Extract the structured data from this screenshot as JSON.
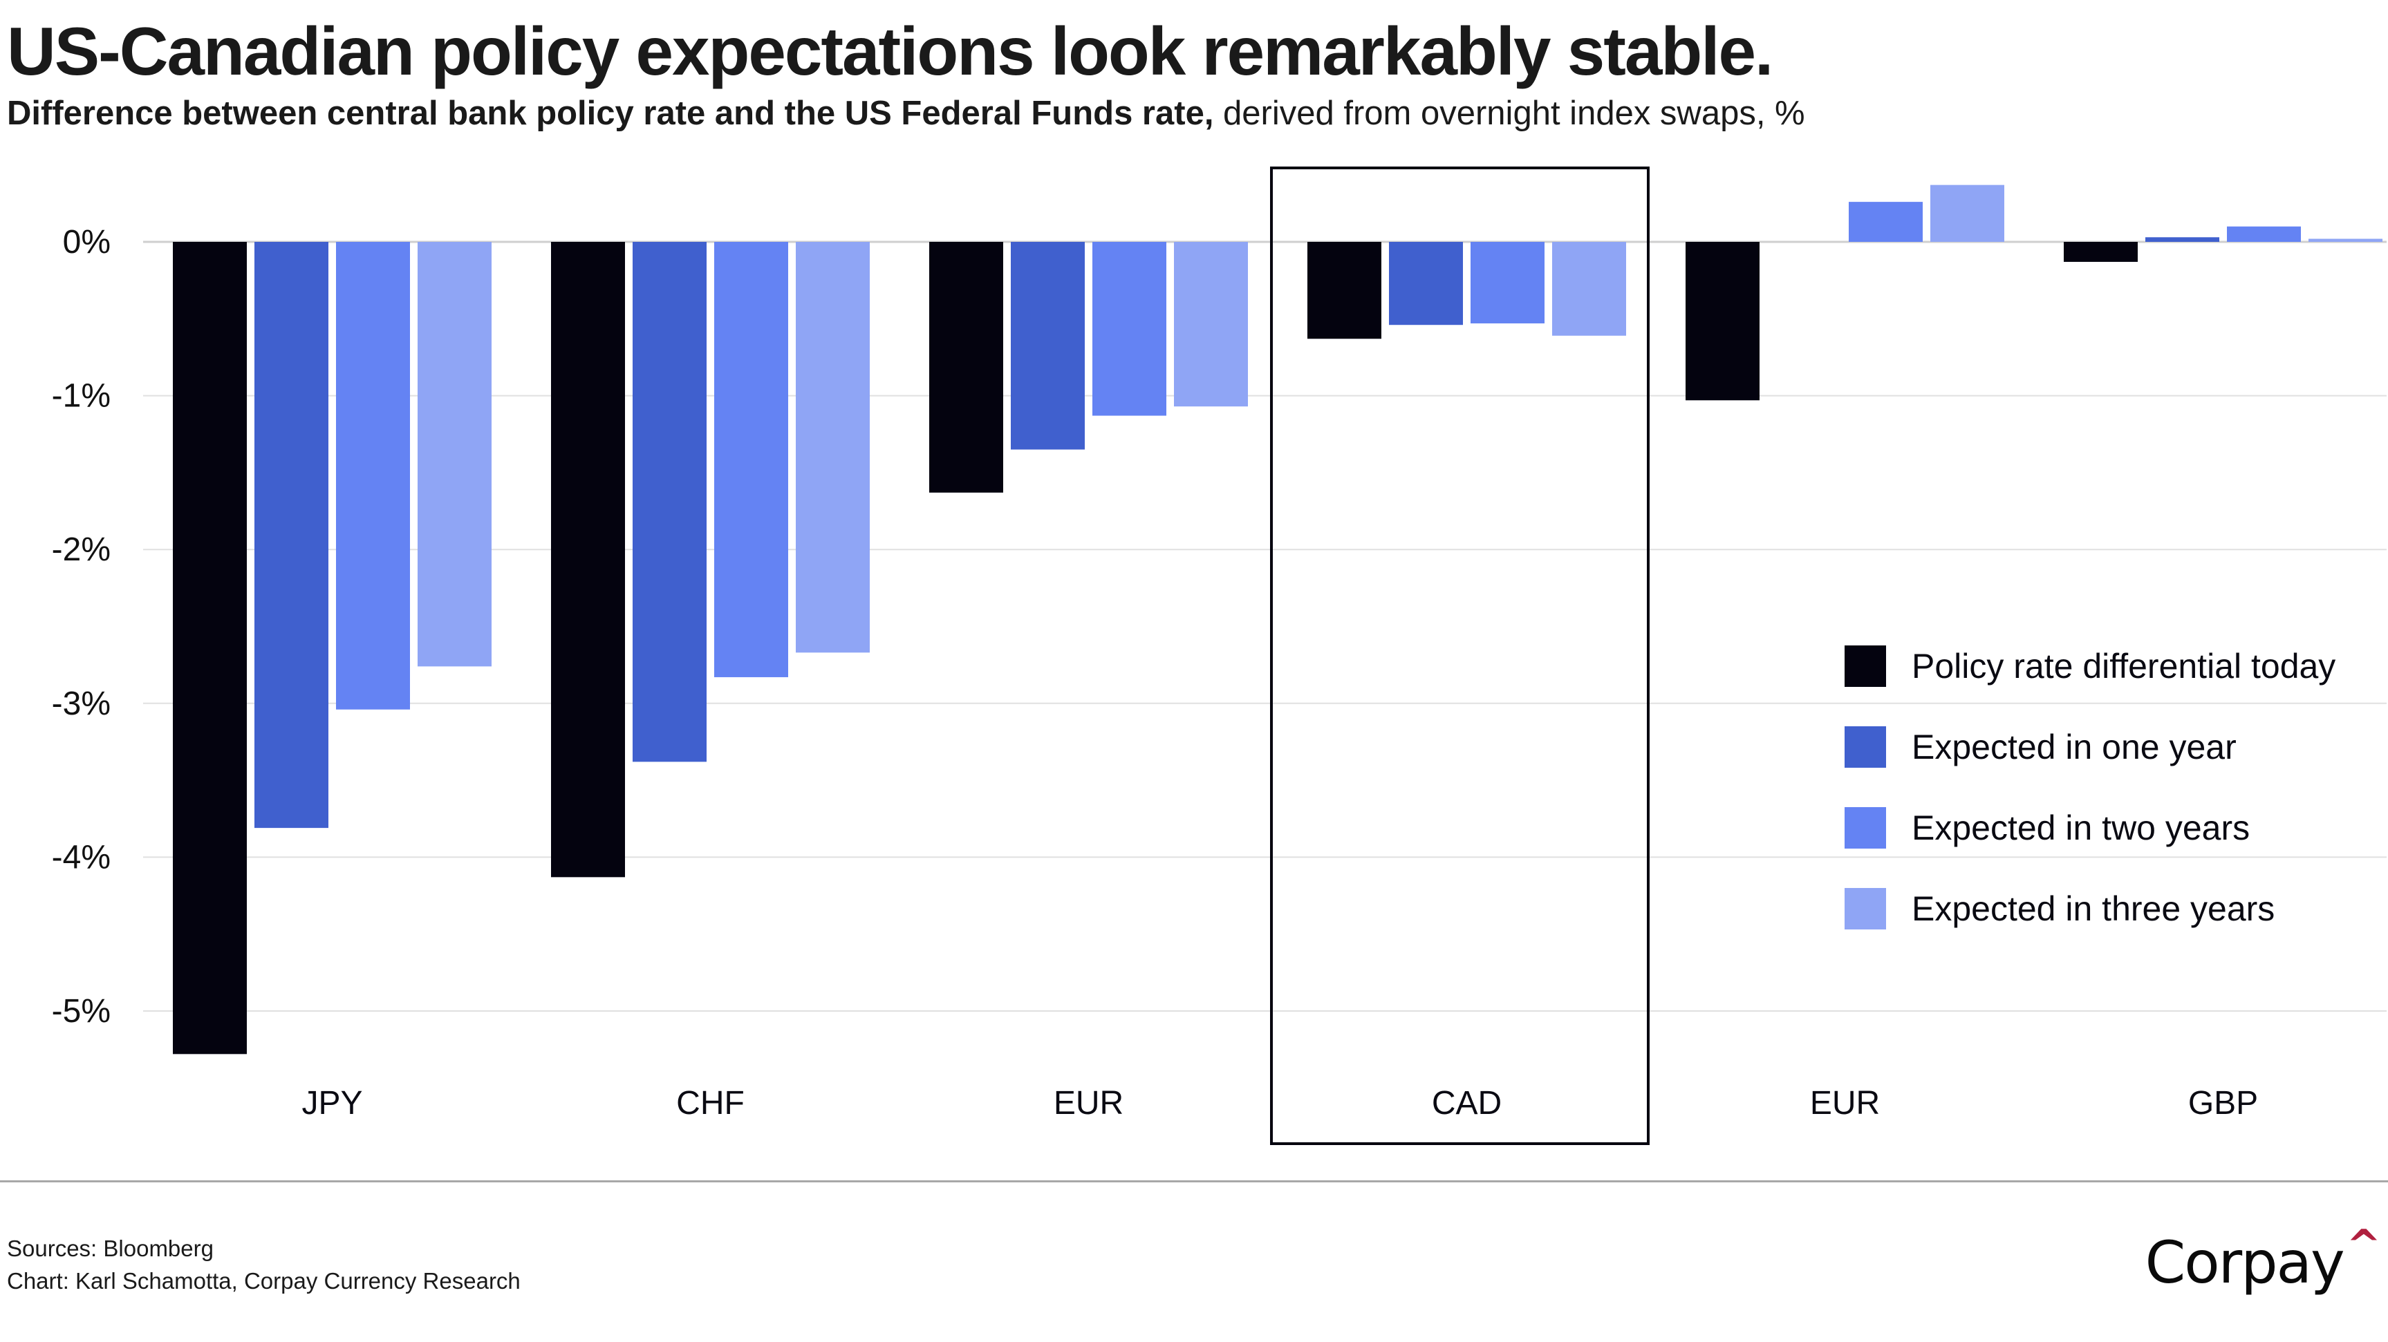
{
  "header": {
    "title": "US-Canadian policy expectations look remarkably stable.",
    "subtitle_bold": "Difference between central bank policy rate and the US Federal Funds rate,",
    "subtitle_rest": " derived from overnight index swaps, %"
  },
  "footer": {
    "sources": "Sources: Bloomberg",
    "credit": "Chart: Karl Schamotta, Corpay Currency Research",
    "logo_text": "Corpay",
    "logo_mark": "^",
    "logo_mark_color": "#b0203f"
  },
  "chart_data": {
    "type": "bar",
    "title": "US-Canadian policy expectations look remarkably stable.",
    "subtitle": "Difference between central bank policy rate and the US Federal Funds rate, derived from overnight index swaps, %",
    "xlabel": "",
    "ylabel": "",
    "ylim": [
      -5.4,
      0.5
    ],
    "yticks": [
      0,
      -1,
      -2,
      -3,
      -4,
      -5
    ],
    "ytick_labels": [
      "0%",
      "-1%",
      "-2%",
      "-3%",
      "-4%",
      "-5%"
    ],
    "grid": true,
    "legend_position": "right",
    "categories": [
      "JPY",
      "CHF",
      "EUR",
      "CAD",
      "EUR",
      "GBP"
    ],
    "highlight_category_index": 3,
    "series": [
      {
        "name": "Policy rate differential today",
        "color": "#04030f",
        "values": [
          -5.28,
          -4.13,
          -1.63,
          -0.63,
          -1.03,
          -0.13
        ]
      },
      {
        "name": "Expected in one year",
        "color": "#4060ce",
        "values": [
          -3.81,
          -3.38,
          -1.35,
          -0.54,
          0.0,
          0.03
        ]
      },
      {
        "name": "Expected in two years",
        "color": "#6483f3",
        "values": [
          -3.04,
          -2.83,
          -1.13,
          -0.53,
          0.26,
          0.1
        ]
      },
      {
        "name": "Expected in three years",
        "color": "#8fa5f5",
        "values": [
          -2.76,
          -2.67,
          -1.07,
          -0.61,
          0.37,
          0.02
        ]
      }
    ]
  }
}
